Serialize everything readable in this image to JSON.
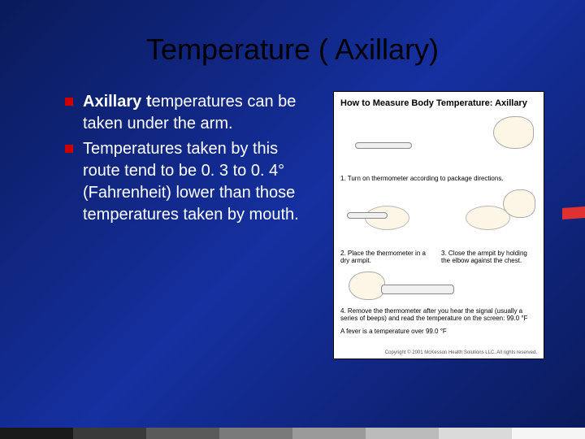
{
  "title": "Temperature ( Axillary)",
  "bullets": [
    {
      "bold": "Axillary t",
      "rest": "emperatures can be taken under the arm."
    },
    {
      "bold": "",
      "rest": "Temperatures taken by this route tend to be 0. 3 to 0. 4° (Fahrenheit) lower than those temperatures taken by mouth."
    }
  ],
  "diagram": {
    "title": "How to Measure Body Temperature: Axillary",
    "step1": "1. Turn on thermometer according to package directions.",
    "step2": "2. Place the thermometer in a dry armpit.",
    "step3": "3. Close the armpit by holding the elbow against the chest.",
    "step4": "4. Remove the thermometer after you hear the signal (usually a series of beeps) and read the temperature on the screen: 99.0 °F",
    "fever_note": "A fever is a temperature over 99.0 °F",
    "copyright": "Copyright © 2001 McKesson Health Solutions LLC. All rights reserved."
  },
  "strip_colors": [
    "#1a1a1a",
    "#3a3a3a",
    "#5a5a5a",
    "#7a7a7a",
    "#9a9a9a",
    "#bababa",
    "#dadada",
    "#f5f5f5"
  ]
}
